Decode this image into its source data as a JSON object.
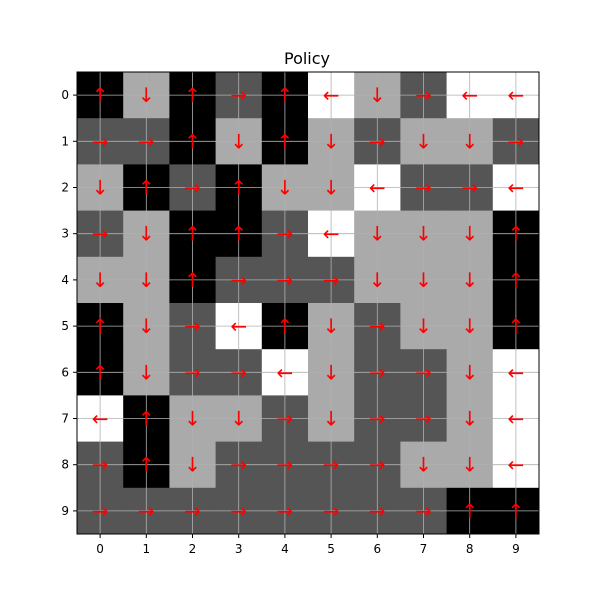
{
  "chart_data": {
    "type": "heatmap",
    "title": "Policy",
    "xlabel": "",
    "ylabel": "",
    "x_ticks": [
      "0",
      "1",
      "2",
      "3",
      "4",
      "5",
      "6",
      "7",
      "8",
      "9"
    ],
    "y_ticks": [
      "0",
      "1",
      "2",
      "3",
      "4",
      "5",
      "6",
      "7",
      "8",
      "9"
    ],
    "grid": true,
    "arrow_color": "#ff0000",
    "grid_color": "#b0b0b0",
    "cell_colors": {
      "0": "#000000",
      "1": "#555555",
      "2": "#aaaaaa",
      "3": "#ffffff"
    },
    "cells": [
      [
        0,
        2,
        0,
        1,
        0,
        3,
        2,
        1,
        3,
        3
      ],
      [
        1,
        1,
        0,
        2,
        0,
        2,
        1,
        2,
        2,
        1
      ],
      [
        2,
        0,
        1,
        0,
        2,
        2,
        3,
        1,
        1,
        3
      ],
      [
        1,
        2,
        0,
        0,
        1,
        3,
        2,
        2,
        2,
        0
      ],
      [
        2,
        2,
        0,
        1,
        1,
        1,
        2,
        2,
        2,
        0
      ],
      [
        0,
        2,
        1,
        3,
        0,
        2,
        1,
        2,
        2,
        0
      ],
      [
        0,
        2,
        1,
        1,
        3,
        2,
        1,
        1,
        2,
        3
      ],
      [
        3,
        0,
        2,
        2,
        1,
        2,
        1,
        1,
        2,
        3
      ],
      [
        1,
        0,
        2,
        1,
        1,
        1,
        1,
        2,
        2,
        3
      ],
      [
        1,
        1,
        1,
        1,
        1,
        1,
        1,
        1,
        0,
        0
      ]
    ],
    "arrows": [
      [
        "↑",
        "↓",
        "↑",
        "→",
        "↑",
        "←",
        "↓",
        "→",
        "←",
        "←"
      ],
      [
        "→",
        "→",
        "↑",
        "↓",
        "↑",
        "↓",
        "→",
        "↓",
        "↓",
        "→"
      ],
      [
        "↓",
        "↑",
        "→",
        "↑",
        "↓",
        "↓",
        "←",
        "→",
        "→",
        "←"
      ],
      [
        "→",
        "↓",
        "↑",
        "↑",
        "→",
        "←",
        "↓",
        "↓",
        "↓",
        "↑"
      ],
      [
        "↓",
        "↓",
        "↑",
        "→",
        "→",
        "→",
        "↓",
        "↓",
        "↓",
        "↑"
      ],
      [
        "↑",
        "↓",
        "→",
        "←",
        "↑",
        "↓",
        "→",
        "↓",
        "↓",
        "↑"
      ],
      [
        "↑",
        "↓",
        "→",
        "→",
        "←",
        "↓",
        "→",
        "→",
        "↓",
        "←"
      ],
      [
        "←",
        "↑",
        "↓",
        "↓",
        "→",
        "↓",
        "→",
        "→",
        "↓",
        "←"
      ],
      [
        "→",
        "↑",
        "↓",
        "→",
        "→",
        "→",
        "→",
        "↓",
        "↓",
        "←"
      ],
      [
        "→",
        "→",
        "→",
        "→",
        "→",
        "→",
        "→",
        "→",
        "↑",
        "↑"
      ]
    ]
  }
}
